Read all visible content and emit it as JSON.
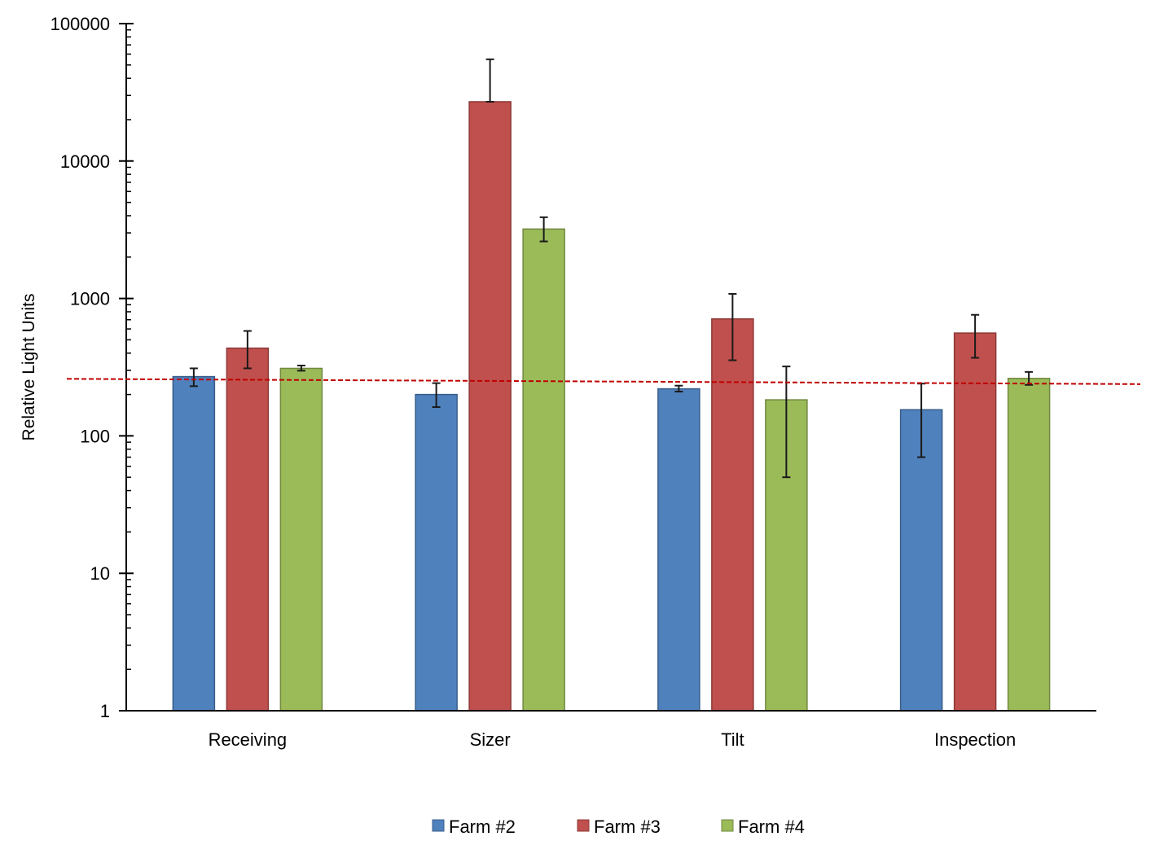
{
  "chart_data": {
    "type": "bar",
    "title": "",
    "xlabel": "",
    "ylabel": "Relative Light Units",
    "y_scale": "log",
    "ylim": [
      1,
      100000
    ],
    "y_ticks": [
      1,
      10,
      100,
      1000,
      10000,
      100000
    ],
    "y_tick_labels": [
      "1",
      "10",
      "100",
      "1000",
      "10000",
      "100000"
    ],
    "categories": [
      "Receiving",
      "Sizer",
      "Tilt",
      "Inspection"
    ],
    "series": [
      {
        "name": "Farm #2",
        "color": "#4F81BD",
        "border": "#385D8A",
        "values": [
          270,
          200,
          220,
          155
        ],
        "error_low": [
          230,
          162,
          210,
          70
        ],
        "error_high": [
          310,
          242,
          232,
          240
        ]
      },
      {
        "name": "Farm #3",
        "color": "#C0504D",
        "border": "#8C3836",
        "values": [
          435,
          27000,
          710,
          560
        ],
        "error_low": [
          310,
          27000,
          355,
          370
        ],
        "error_high": [
          580,
          55000,
          1080,
          760
        ]
      },
      {
        "name": "Farm #4",
        "color": "#9BBB59",
        "border": "#71893F",
        "values": [
          310,
          3200,
          183,
          262
        ],
        "error_low": [
          298,
          2600,
          50,
          235
        ],
        "error_high": [
          325,
          3900,
          320,
          292
        ]
      }
    ],
    "reference_line": {
      "color": "#C00000",
      "style": "dashed",
      "start_value": 260,
      "end_value": 238
    },
    "legend": {
      "position": "bottom",
      "entries": [
        "Farm #2",
        "Farm #3",
        "Farm #4"
      ]
    },
    "grid": false
  }
}
